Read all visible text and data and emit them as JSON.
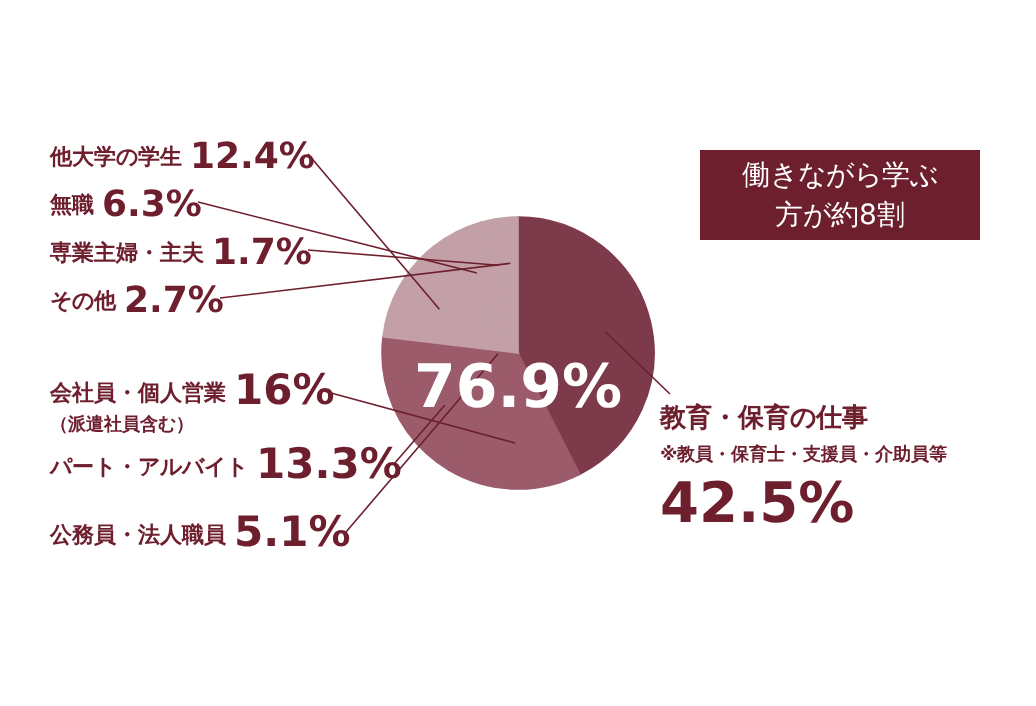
{
  "chart_data": {
    "type": "pie",
    "categories": [
      "教育・保育の仕事",
      "会社員・個人営業",
      "パート・アルバイト",
      "公務員・法人職員",
      "他大学の学生",
      "無職",
      "専業主婦・主夫",
      "その他"
    ],
    "values": [
      42.5,
      16,
      13.3,
      5.1,
      12.4,
      6.3,
      1.7,
      2.7
    ],
    "value_labels": [
      "42.5%",
      "16%",
      "13.3%",
      "5.1%",
      "12.4%",
      "6.3%",
      "1.7%",
      "2.7%"
    ],
    "colors": [
      "#7d3a4b",
      "#9b5b6a",
      "#9b5b6a",
      "#9b5b6a",
      "#c3a0a7",
      "#c3a0a7",
      "#c3a0a7",
      "#c3a0a7"
    ],
    "annotations": [
      "※教員・保育士・支援員・介助員等",
      "（派遣社員含む）",
      "76.9%",
      "働きながら学ぶ",
      "方が約8割"
    ]
  }
}
